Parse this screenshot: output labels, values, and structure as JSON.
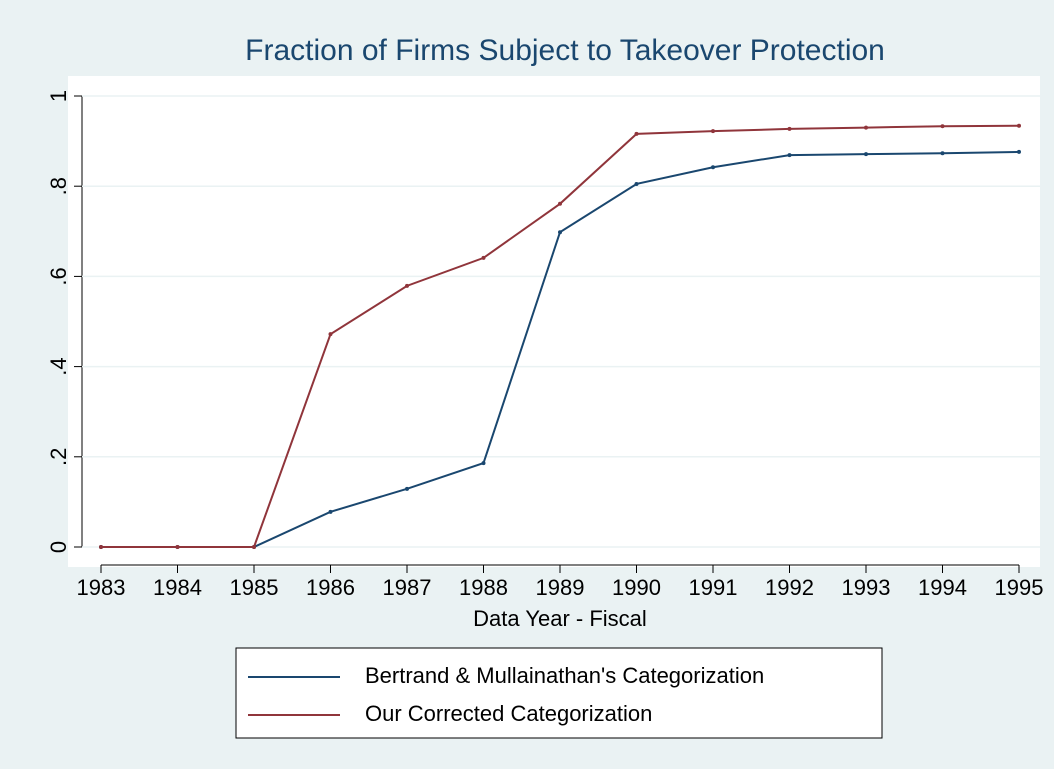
{
  "chart_data": {
    "type": "line",
    "title": "Fraction of Firms Subject to Takeover Protection",
    "xlabel": "Data Year - Fiscal",
    "x": [
      1983,
      1984,
      1985,
      1986,
      1987,
      1988,
      1989,
      1990,
      1991,
      1992,
      1993,
      1994,
      1995
    ],
    "series": [
      {
        "name": "Bertrand & Mullainathan's Categorization",
        "color": "#1a476f",
        "values": [
          0,
          0,
          0,
          0.078,
          0.129,
          0.186,
          0.698,
          0.805,
          0.842,
          0.869,
          0.871,
          0.873,
          0.876
        ]
      },
      {
        "name": "Our Corrected Categorization",
        "color": "#90353b",
        "values": [
          0,
          0,
          0,
          0.472,
          0.579,
          0.641,
          0.761,
          0.916,
          0.922,
          0.927,
          0.93,
          0.933,
          0.934
        ]
      }
    ],
    "xlim": [
      1983,
      1995
    ],
    "xticks": [
      1983,
      1984,
      1985,
      1986,
      1987,
      1988,
      1989,
      1990,
      1991,
      1992,
      1993,
      1994,
      1995
    ],
    "ylim": [
      0,
      1
    ],
    "yticks": [
      0,
      {
        "value": 0.2,
        "label": ".2"
      },
      {
        "value": 0.4,
        "label": ".4"
      },
      {
        "value": 0.6,
        "label": ".6"
      },
      {
        "value": 0.8,
        "label": ".8"
      },
      1
    ],
    "grid": true
  }
}
